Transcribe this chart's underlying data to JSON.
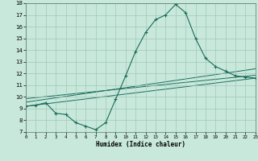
{
  "xlabel": "Humidex (Indice chaleur)",
  "xlim": [
    0,
    23
  ],
  "ylim": [
    7,
    18
  ],
  "xticks": [
    0,
    1,
    2,
    3,
    4,
    5,
    6,
    7,
    8,
    9,
    10,
    11,
    12,
    13,
    14,
    15,
    16,
    17,
    18,
    19,
    20,
    21,
    22,
    23
  ],
  "yticks": [
    7,
    8,
    9,
    10,
    11,
    12,
    13,
    14,
    15,
    16,
    17,
    18
  ],
  "bg_color": "#c8e8dc",
  "line_color": "#1a6b5a",
  "grid_color": "#a0c8b8",
  "series": [
    {
      "x": [
        0,
        1,
        2,
        3,
        4,
        5,
        6,
        7,
        8,
        9,
        10,
        11,
        12,
        13,
        14,
        15,
        16,
        17,
        18,
        19,
        20,
        21,
        22,
        23
      ],
      "y": [
        9.2,
        9.3,
        9.5,
        8.6,
        8.5,
        7.8,
        7.5,
        7.2,
        7.8,
        9.8,
        11.8,
        13.9,
        15.5,
        16.6,
        17.0,
        17.9,
        17.2,
        15.0,
        13.3,
        12.6,
        12.2,
        11.8,
        11.7,
        11.6
      ]
    },
    {
      "x": [
        0,
        23
      ],
      "y": [
        9.2,
        11.6
      ]
    },
    {
      "x": [
        0,
        23
      ],
      "y": [
        9.55,
        12.4
      ]
    },
    {
      "x": [
        0,
        23
      ],
      "y": [
        9.85,
        11.85
      ]
    }
  ]
}
